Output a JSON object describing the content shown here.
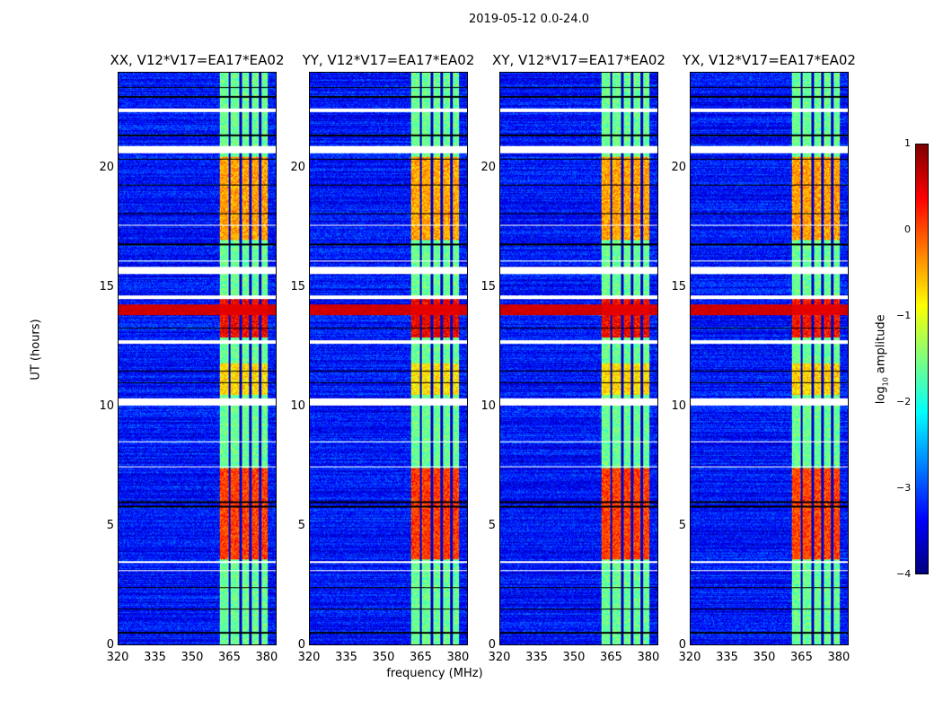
{
  "suptitle": "2019-05-12 0.0-24.0",
  "xlabel": "frequency (MHz)",
  "ylabel": "UT (hours)",
  "colorbar": {
    "label_pre": "log",
    "label_sub": "10",
    "label_post": " amplitude",
    "range": [
      -4,
      1
    ],
    "ticks": [
      "1",
      "0",
      "−1",
      "−2",
      "−3",
      "−4"
    ],
    "colormap": "jet"
  },
  "chart_data": {
    "type": "heatmap",
    "xlim": [
      320,
      384
    ],
    "ylim": [
      0,
      24
    ],
    "xticks": [
      "320",
      "335",
      "350",
      "365",
      "380"
    ],
    "xtick_values": [
      320,
      335,
      350,
      365,
      380
    ],
    "yticks": [
      "0",
      "5",
      "10",
      "15",
      "20"
    ],
    "ytick_values": [
      0,
      5,
      10,
      15,
      20
    ],
    "panels": [
      {
        "title": "XX, V12*V17=EA17*EA02",
        "hot_scale": 1.0
      },
      {
        "title": "YY, V12*V17=EA17*EA02",
        "hot_scale": 1.1
      },
      {
        "title": "XY, V12*V17=EA17*EA02",
        "hot_scale": 1.0
      },
      {
        "title": "YX, V12*V17=EA17*EA02",
        "hot_scale": 0.9
      }
    ],
    "background_log_amp": -3.3,
    "rfi_band_mhz": [
      361,
      380.5
    ],
    "rfi_band_log_amp": -1.6,
    "subband_edges_mhz": [
      365,
      369.5,
      373.5,
      377.5
    ],
    "hot_intervals_hours": [
      [
        3.6,
        7.4,
        0.3
      ],
      [
        12.9,
        14.6,
        0.6
      ],
      [
        17.0,
        20.5,
        -0.2
      ],
      [
        10.5,
        11.8,
        -0.5
      ]
    ],
    "strong_broadband_hours": [
      [
        13.85,
        14.3,
        0.8
      ]
    ],
    "flagged_hours": [
      [
        22.35,
        22.5
      ],
      [
        20.65,
        20.95
      ],
      [
        15.55,
        15.85
      ],
      [
        14.5,
        14.65
      ],
      [
        12.65,
        12.8
      ],
      [
        10.05,
        10.35
      ],
      [
        3.45,
        3.5
      ],
      [
        3.1,
        3.15
      ],
      [
        7.45,
        7.5
      ],
      [
        8.5,
        8.55
      ],
      [
        17.6,
        17.65
      ],
      [
        16.1,
        16.15
      ]
    ],
    "dark_line_hours": [
      0.5,
      1.5,
      2.4,
      5.8,
      6.0,
      11.0,
      11.5,
      13.3,
      16.8,
      18.1,
      19.3,
      20.4,
      21.4,
      23.0,
      23.4
    ]
  }
}
